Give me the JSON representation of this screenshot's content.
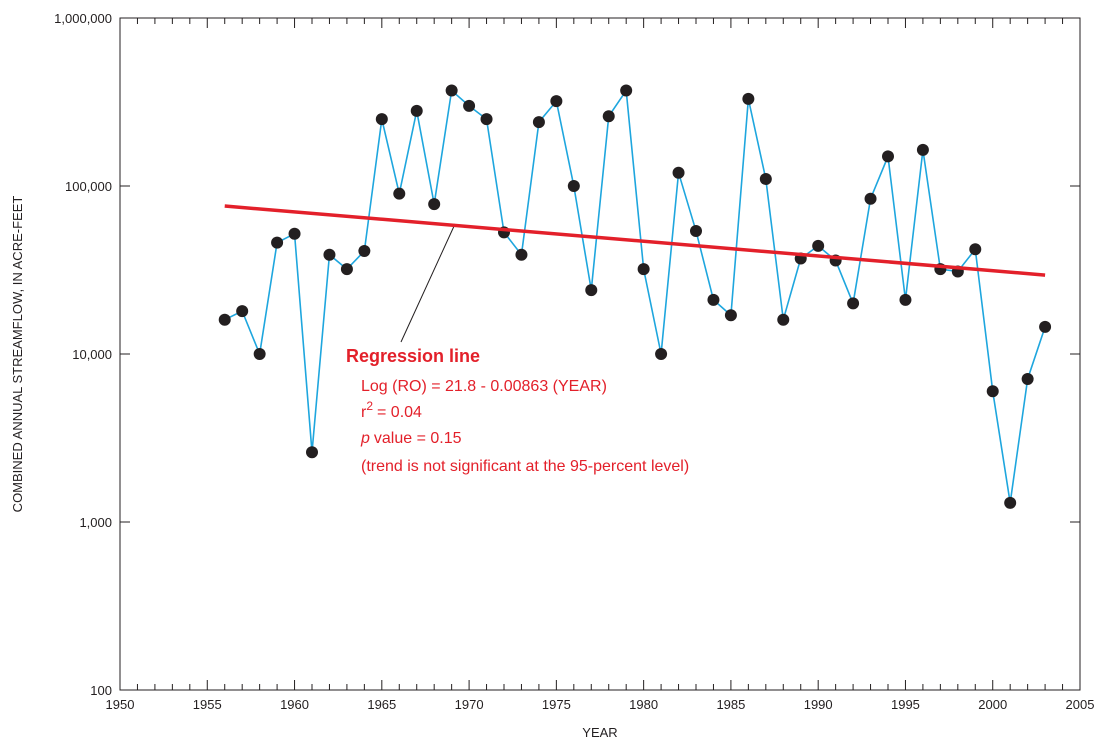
{
  "chart_data": {
    "type": "line",
    "log_scale_y": true,
    "x_label": "YEAR",
    "y_label": "COMBINED ANNUAL STREAMFLOW, IN ACRE-FEET",
    "x": [
      1956,
      1957,
      1958,
      1959,
      1960,
      1961,
      1962,
      1963,
      1964,
      1965,
      1966,
      1967,
      1968,
      1969,
      1970,
      1971,
      1972,
      1973,
      1974,
      1975,
      1976,
      1977,
      1978,
      1979,
      1980,
      1981,
      1982,
      1983,
      1984,
      1985,
      1986,
      1987,
      1988,
      1989,
      1990,
      1991,
      1992,
      1993,
      1994,
      1995,
      1996,
      1997,
      1998,
      1999,
      2000,
      2001,
      2002,
      2003
    ],
    "series": [
      {
        "color": "#1ea6de",
        "marker_color": "#231f20",
        "values": [
          16000,
          18000,
          10000,
          46000,
          52000,
          2600,
          39000,
          32000,
          41000,
          250000,
          90000,
          280000,
          78000,
          370000,
          300000,
          250000,
          53000,
          39000,
          240000,
          320000,
          100000,
          24000,
          260000,
          370000,
          32000,
          10000,
          120000,
          54000,
          21000,
          17000,
          330000,
          110000,
          16000,
          37000,
          44000,
          36000,
          20000,
          84000,
          150000,
          21000,
          164000,
          32000,
          31000,
          42000,
          6000,
          1300,
          7100,
          14500
        ]
      }
    ],
    "regression": {
      "color": "#e3202a",
      "x": [
        1956,
        2003
      ],
      "values": [
        76000,
        29500
      ]
    },
    "annotation": {
      "title": "Regression line",
      "equation": "Log (RO) = 21.8 - 0.00863 (YEAR)",
      "r2_label": "r",
      "r2_sup": "2",
      "r2_text": "= 0.04",
      "p_label": "p",
      "p_text": "value = 0.15",
      "note": "(trend is not significant at the 95-percent level)"
    },
    "xlim": [
      1950,
      2005
    ],
    "xticks": [
      1950,
      1955,
      1960,
      1965,
      1970,
      1975,
      1980,
      1985,
      1990,
      1995,
      2000,
      2005
    ],
    "xminorticks": [
      1951,
      1952,
      1953,
      1954,
      1956,
      1957,
      1958,
      1959,
      1961,
      1962,
      1963,
      1964,
      1966,
      1967,
      1968,
      1969,
      1971,
      1972,
      1973,
      1974,
      1976,
      1977,
      1978,
      1979,
      1981,
      1982,
      1983,
      1984,
      1986,
      1987,
      1988,
      1989,
      1991,
      1992,
      1993,
      1994,
      1996,
      1997,
      1998,
      1999,
      2001,
      2002,
      2003,
      2004
    ],
    "ylim": [
      100,
      1000000
    ],
    "yticks": [
      100,
      {
        "value": 1000,
        "label": "1,000"
      },
      {
        "value": 10000,
        "label": "10,000"
      },
      {
        "value": 100000,
        "label": "100,000"
      },
      {
        "value": 1000000,
        "label": "1,000,000"
      }
    ]
  }
}
